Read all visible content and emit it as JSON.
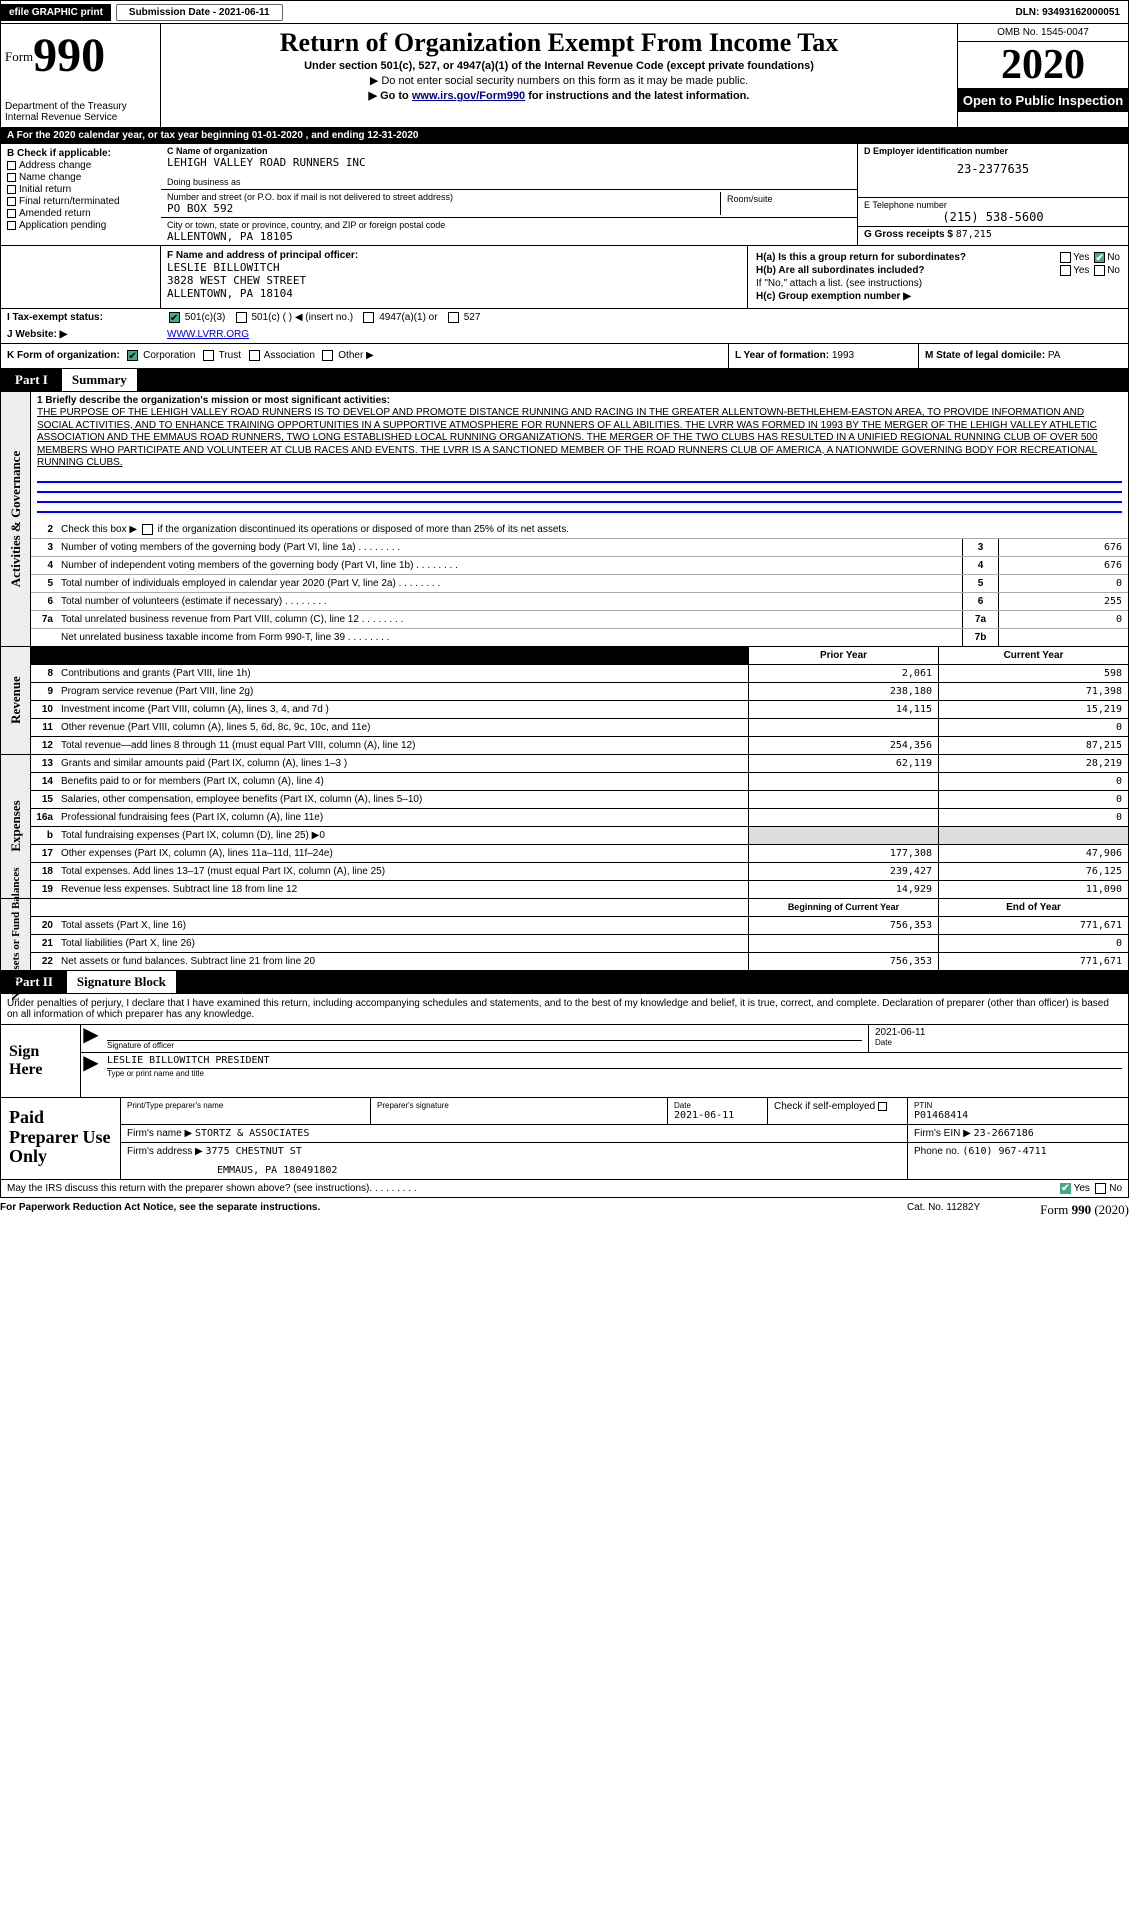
{
  "topbar": {
    "efile": "efile GRAPHIC print",
    "btn": "Submission Date - 2021-06-11",
    "dln": "DLN: 93493162000051"
  },
  "header": {
    "form_word": "Form",
    "form_num": "990",
    "dept": "Department of the Treasury\nInternal Revenue Service",
    "title": "Return of Organization Exempt From Income Tax",
    "sub1": "Under section 501(c), 527, or 4947(a)(1) of the Internal Revenue Code (except private foundations)",
    "sub2": "▶ Do not enter social security numbers on this form as it may be made public.",
    "sub3_pre": "▶ Go to ",
    "sub3_link": "www.irs.gov/Form990",
    "sub3_post": " for instructions and the latest information.",
    "omb": "OMB No. 1545-0047",
    "year": "2020",
    "inspect": "Open to Public Inspection"
  },
  "lineA": "A  For the 2020 calendar year, or tax year beginning 01-01-2020     , and ending 12-31-2020",
  "sectionB": {
    "heading": "B Check if applicable:",
    "items": [
      "Address change",
      "Name change",
      "Initial return",
      "Final return/terminated",
      "Amended return",
      "Application pending"
    ]
  },
  "sectionC": {
    "c_label": "C Name of organization",
    "c_val": "LEHIGH VALLEY ROAD RUNNERS INC",
    "dba_label": "Doing business as",
    "dba_val": "",
    "addr_label": "Number and street (or P.O. box if mail is not delivered to street address)",
    "addr_val": "PO BOX 592",
    "room_label": "Room/suite",
    "city_label": "City or town, state or province, country, and ZIP or foreign postal code",
    "city_val": "ALLENTOWN, PA  18105"
  },
  "sectionD": {
    "label": "D Employer identification number",
    "val": "23-2377635"
  },
  "sectionE": {
    "label": "E Telephone number",
    "val": "(215) 538-5600"
  },
  "sectionG": {
    "label": "G Gross receipts $",
    "val": "87,215"
  },
  "sectionF": {
    "label": "F  Name and address of principal officer:",
    "name": "LESLIE BILLOWITCH",
    "addr1": "3828 WEST CHEW STREET",
    "addr2": "ALLENTOWN, PA  18104"
  },
  "sectionH": {
    "ha": "H(a)  Is this a group return for subordinates?",
    "hb": "H(b)  Are all subordinates included?",
    "hb_note": "If \"No,\" attach a list. (see instructions)",
    "hc": "H(c)  Group exemption number ▶"
  },
  "sectionI": {
    "label": "I    Tax-exempt status:",
    "opts": [
      "501(c)(3)",
      "501(c) (  ) ◀ (insert no.)",
      "4947(a)(1) or",
      "527"
    ]
  },
  "sectionJ": {
    "label": "J   Website: ▶",
    "val": "WWW.LVRR.ORG"
  },
  "sectionK": {
    "label": "K Form of organization:",
    "opts": [
      "Corporation",
      "Trust",
      "Association",
      "Other ▶"
    ]
  },
  "sectionL": {
    "label": "L Year of formation:",
    "val": "1993"
  },
  "sectionM": {
    "label": "M State of legal domicile:",
    "val": "PA"
  },
  "part1": {
    "title_box": "Part I",
    "title": "Summary",
    "sideA": "Activities & Governance",
    "line1_label": "1  Briefly describe the organization's mission or most significant activities:",
    "mission": "THE PURPOSE OF THE LEHIGH VALLEY ROAD RUNNERS IS TO DEVELOP AND PROMOTE DISTANCE RUNNING AND RACING IN THE GREATER ALLENTOWN-BETHLEHEM-EASTON AREA, TO PROVIDE INFORMATION AND SOCIAL ACTIVITIES, AND TO ENHANCE TRAINING OPPORTUNITIES IN A SUPPORTIVE ATMOSPHERE FOR RUNNERS OF ALL ABILITIES. THE LVRR WAS FORMED IN 1993 BY THE MERGER OF THE LEHIGH VALLEY ATHLETIC ASSOCIATION AND THE EMMAUS ROAD RUNNERS, TWO LONG ESTABLISHED LOCAL RUNNING ORGANIZATIONS. THE MERGER OF THE TWO CLUBS HAS RESULTED IN A UNIFIED REGIONAL RUNNING CLUB OF OVER 500 MEMBERS WHO PARTICIPATE AND VOLUNTEER AT CLUB RACES AND EVENTS. THE LVRR IS A SANCTIONED MEMBER OF THE ROAD RUNNERS CLUB OF AMERICA, A NATIONWIDE GOVERNING BODY FOR RECREATIONAL RUNNING CLUBS.",
    "line2": "Check this box ▶        if the organization discontinued its operations or disposed of more than 25% of its net assets.",
    "rows": [
      {
        "n": "3",
        "t": "Number of voting members of the governing body (Part VI, line 1a)",
        "box": "3",
        "v": "676"
      },
      {
        "n": "4",
        "t": "Number of independent voting members of the governing body (Part VI, line 1b)",
        "box": "4",
        "v": "676"
      },
      {
        "n": "5",
        "t": "Total number of individuals employed in calendar year 2020 (Part V, line 2a)",
        "box": "5",
        "v": "0"
      },
      {
        "n": "6",
        "t": "Total number of volunteers (estimate if necessary)",
        "box": "6",
        "v": "255"
      },
      {
        "n": "7a",
        "t": "Total unrelated business revenue from Part VIII, column (C), line 12",
        "box": "7a",
        "v": "0"
      },
      {
        "n": "",
        "t": "Net unrelated business taxable income from Form 990-T, line 39",
        "box": "7b",
        "v": ""
      }
    ],
    "colHdr1": "Prior Year",
    "colHdr2": "Current Year",
    "sideRev": "Revenue",
    "revRows": [
      {
        "n": "8",
        "t": "Contributions and grants (Part VIII, line 1h)",
        "c1": "2,061",
        "c2": "598"
      },
      {
        "n": "9",
        "t": "Program service revenue (Part VIII, line 2g)",
        "c1": "238,180",
        "c2": "71,398"
      },
      {
        "n": "10",
        "t": "Investment income (Part VIII, column (A), lines 3, 4, and 7d )",
        "c1": "14,115",
        "c2": "15,219"
      },
      {
        "n": "11",
        "t": "Other revenue (Part VIII, column (A), lines 5, 6d, 8c, 9c, 10c, and 11e)",
        "c1": "",
        "c2": "0"
      },
      {
        "n": "12",
        "t": "Total revenue—add lines 8 through 11 (must equal Part VIII, column (A), line 12)",
        "c1": "254,356",
        "c2": "87,215"
      }
    ],
    "sideExp": "Expenses",
    "expRows": [
      {
        "n": "13",
        "t": "Grants and similar amounts paid (Part IX, column (A), lines 1–3 )",
        "c1": "62,119",
        "c2": "28,219"
      },
      {
        "n": "14",
        "t": "Benefits paid to or for members (Part IX, column (A), line 4)",
        "c1": "",
        "c2": "0"
      },
      {
        "n": "15",
        "t": "Salaries, other compensation, employee benefits (Part IX, column (A), lines 5–10)",
        "c1": "",
        "c2": "0"
      },
      {
        "n": "16a",
        "t": "Professional fundraising fees (Part IX, column (A), line 11e)",
        "c1": "",
        "c2": "0"
      },
      {
        "n": "b",
        "t": "Total fundraising expenses (Part IX, column (D), line 25) ▶0",
        "c1shaded": true,
        "c1": "",
        "c2shaded": true,
        "c2": ""
      },
      {
        "n": "17",
        "t": "Other expenses (Part IX, column (A), lines 11a–11d, 11f–24e)",
        "c1": "177,308",
        "c2": "47,906"
      },
      {
        "n": "18",
        "t": "Total expenses. Add lines 13–17 (must equal Part IX, column (A), line 25)",
        "c1": "239,427",
        "c2": "76,125"
      },
      {
        "n": "19",
        "t": "Revenue less expenses. Subtract line 18 from line 12",
        "c1": "14,929",
        "c2": "11,090"
      }
    ],
    "sideNet": "Net Assets or Fund Balances",
    "netHdr1": "Beginning of Current Year",
    "netHdr2": "End of Year",
    "netRows": [
      {
        "n": "20",
        "t": "Total assets (Part X, line 16)",
        "c1": "756,353",
        "c2": "771,671"
      },
      {
        "n": "21",
        "t": "Total liabilities (Part X, line 26)",
        "c1": "",
        "c2": "0"
      },
      {
        "n": "22",
        "t": "Net assets or fund balances. Subtract line 21 from line 20",
        "c1": "756,353",
        "c2": "771,671"
      }
    ]
  },
  "part2": {
    "title_box": "Part II",
    "title": "Signature Block",
    "note": "Under penalties of perjury, I declare that I have examined this return, including accompanying schedules and statements, and to the best of my knowledge and belief, it is true, correct, and complete. Declaration of preparer (other than officer) is based on all information of which preparer has any knowledge.",
    "sign_here": "Sign Here",
    "sig_officer": "Signature of officer",
    "sig_date": "2021-06-11",
    "sig_date_label": "Date",
    "sig_name": "LESLIE BILLOWITCH  PRESIDENT",
    "sig_name_label": "Type or print name and title",
    "paid": "Paid Preparer Use Only",
    "prep_name_label": "Print/Type preparer's name",
    "prep_sig_label": "Preparer's signature",
    "prep_date_label": "Date",
    "prep_date": "2021-06-11",
    "prep_check": "Check        if self-employed",
    "ptin_label": "PTIN",
    "ptin": "P01468414",
    "firm_name_label": "Firm's name    ▶",
    "firm_name": "STORTZ & ASSOCIATES",
    "firm_ein_label": "Firm's EIN ▶",
    "firm_ein": "23-2667186",
    "firm_addr_label": "Firm's address ▶",
    "firm_addr1": "3775 CHESTNUT ST",
    "firm_addr2": "EMMAUS, PA  180491802",
    "firm_phone_label": "Phone no.",
    "firm_phone": "(610) 967-4711",
    "discuss": "May the IRS discuss this return with the preparer shown above? (see instructions)"
  },
  "footer": {
    "l": "For Paperwork Reduction Act Notice, see the separate instructions.",
    "m": "Cat. No. 11282Y",
    "r": "Form 990 (2020)"
  }
}
